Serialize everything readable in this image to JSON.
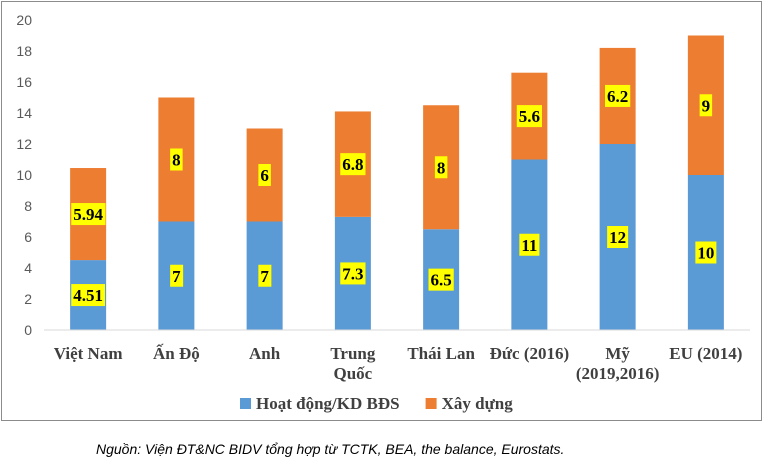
{
  "chart_data": {
    "type": "bar",
    "stacked": true,
    "categories": [
      [
        "Việt Nam"
      ],
      [
        "Ấn Độ"
      ],
      [
        "Anh"
      ],
      [
        "Trung",
        "Quốc"
      ],
      [
        "Thái Lan"
      ],
      [
        "Đức (2016)"
      ],
      [
        "Mỹ",
        "(2019,2016)"
      ],
      [
        "EU (2014)"
      ]
    ],
    "series": [
      {
        "name": "Hoạt động/KD BĐS",
        "color": "#5b9bd5",
        "values": [
          4.51,
          7,
          7,
          7.3,
          6.5,
          11,
          12,
          10
        ],
        "labels": [
          "4.51",
          "7",
          "7",
          "7.3",
          "6.5",
          "11",
          "12",
          "10"
        ]
      },
      {
        "name": "Xây dựng",
        "color": "#ed7d31",
        "values": [
          5.94,
          8,
          6,
          6.8,
          8,
          5.6,
          6.2,
          9
        ],
        "labels": [
          "5.94",
          "8",
          "6",
          "6.8",
          "8",
          "5.6",
          "6.2",
          "9"
        ]
      }
    ],
    "ylim": [
      0,
      20
    ],
    "yticks": [
      "0",
      "2",
      "4",
      "6",
      "8",
      "10",
      "12",
      "14",
      "16",
      "18",
      "20"
    ],
    "grid": false,
    "legend_position": "bottom",
    "data_label_background": "#ffff00"
  },
  "source_note": "Nguồn: Viện ĐT&NC BIDV tổng hợp từ TCTK, BEA, the balance, Eurostats."
}
